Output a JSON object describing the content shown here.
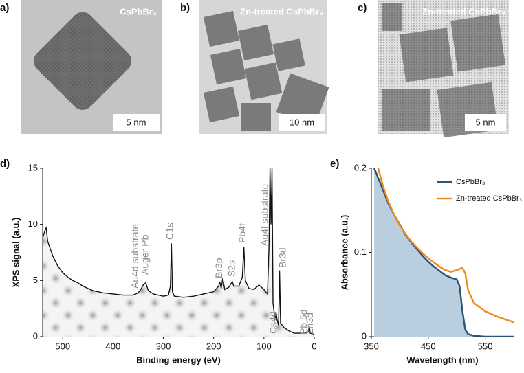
{
  "panels": [
    {
      "label": "a)",
      "caption": "CsPbBr₃",
      "scale_bar": "5 nm"
    },
    {
      "label": "b)",
      "caption": "Zn-treated CsPbBr₃",
      "scale_bar": "10 nm"
    },
    {
      "label": "c)",
      "caption": "Zn-treated CsPbBr₃",
      "scale_bar": "5 nm"
    }
  ],
  "chart_data": [
    {
      "type": "line",
      "label": "d)",
      "x_label": "Binding energy (eV)",
      "y_label": "XPS signal (a.u.)",
      "xlim": [
        540,
        0
      ],
      "xticks": [
        500,
        400,
        300,
        200,
        100,
        0
      ],
      "ylim": [
        0,
        15
      ],
      "yticks": [
        0,
        5,
        10,
        15
      ],
      "fill": "checker",
      "series": [
        {
          "name": "XPS spectrum",
          "color": "#111111",
          "x": [
            540,
            535,
            533,
            530,
            520,
            510,
            500,
            490,
            480,
            470,
            460,
            450,
            440,
            430,
            420,
            400,
            380,
            360,
            350,
            345,
            340,
            335,
            330,
            320,
            300,
            290,
            286,
            284,
            282,
            278,
            260,
            240,
            220,
            200,
            190,
            188,
            185,
            182,
            178,
            170,
            163,
            160,
            150,
            143,
            140,
            137,
            130,
            120,
            110,
            100,
            93,
            90,
            88,
            86,
            84,
            82,
            78,
            76,
            74,
            71,
            69,
            67,
            60,
            50,
            40,
            30,
            20,
            12,
            10,
            8,
            0
          ],
          "values": [
            8.8,
            9.5,
            9.7,
            8.5,
            7.2,
            6.3,
            5.7,
            5.3,
            5.0,
            4.8,
            4.5,
            4.3,
            4.1,
            4.0,
            3.9,
            3.8,
            3.7,
            3.7,
            3.9,
            4.2,
            4.6,
            4.8,
            4.1,
            3.8,
            3.6,
            3.7,
            4.5,
            8.3,
            4.0,
            3.6,
            3.5,
            3.6,
            3.8,
            4.0,
            4.5,
            4.9,
            4.3,
            5.2,
            4.2,
            4.4,
            4.9,
            4.5,
            4.5,
            5.3,
            8.0,
            5.0,
            4.3,
            4.2,
            4.6,
            4.2,
            3.8,
            8.0,
            15,
            10,
            15,
            3.0,
            1.5,
            2.2,
            1.5,
            1.0,
            5.9,
            1.2,
            0.8,
            0.5,
            0.3,
            0.3,
            0.3,
            0.4,
            0.9,
            0.3,
            0.2
          ]
        }
      ],
      "annotations": [
        {
          "text": "Au4d substrate",
          "x": 355
        },
        {
          "text": "Auger Pb",
          "x": 335
        },
        {
          "text": "C1s",
          "x": 286
        },
        {
          "text": "Br3p",
          "x": 188
        },
        {
          "text": "S2s",
          "x": 163
        },
        {
          "text": "Pb4f",
          "x": 142
        },
        {
          "text": "Au4f substrate",
          "x": 97
        },
        {
          "text": "Br3d",
          "x": 62
        },
        {
          "text": "Cs4d",
          "x": 80
        },
        {
          "text": "Pb 5d",
          "x": 20
        },
        {
          "text": "Zn3d",
          "x": 8
        }
      ]
    },
    {
      "type": "line",
      "label": "e)",
      "x_label": "Wavelength (nm)",
      "y_label": "Absorbance (a.u.)",
      "xlim": [
        350,
        600
      ],
      "xticks": [
        350,
        450,
        550
      ],
      "ylim": [
        0,
        0.2
      ],
      "yticks": [
        0,
        0.1,
        0.2
      ],
      "legend": "upper right",
      "series": [
        {
          "name": "CsPbBr₃",
          "color": "#2f5575",
          "fill": "#b9cfdf",
          "x": [
            355,
            370,
            380,
            390,
            400,
            410,
            420,
            430,
            440,
            450,
            460,
            470,
            480,
            490,
            500,
            505,
            510,
            515,
            520,
            530,
            550,
            600
          ],
          "values": [
            0.2,
            0.175,
            0.158,
            0.145,
            0.133,
            0.121,
            0.112,
            0.104,
            0.096,
            0.089,
            0.083,
            0.078,
            0.073,
            0.07,
            0.068,
            0.06,
            0.03,
            0.008,
            0.003,
            0.001,
            0,
            0
          ]
        },
        {
          "name": "Zn-treated CsPbBr₃",
          "color": "#f28a1e",
          "x": [
            362,
            370,
            380,
            390,
            400,
            410,
            420,
            430,
            440,
            450,
            460,
            470,
            480,
            490,
            500,
            510,
            515,
            520,
            530,
            550,
            570,
            600
          ],
          "values": [
            0.2,
            0.18,
            0.16,
            0.145,
            0.132,
            0.122,
            0.113,
            0.106,
            0.099,
            0.093,
            0.088,
            0.083,
            0.079,
            0.077,
            0.079,
            0.082,
            0.075,
            0.055,
            0.04,
            0.03,
            0.024,
            0.017
          ]
        }
      ]
    }
  ]
}
